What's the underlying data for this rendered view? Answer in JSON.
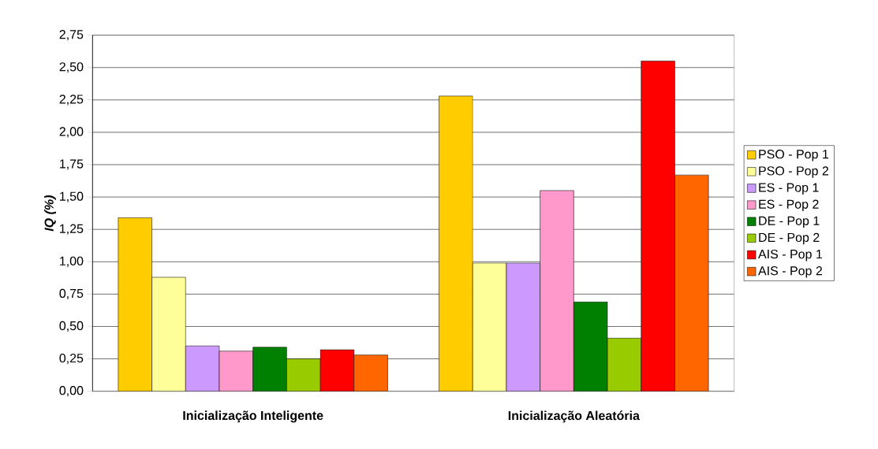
{
  "chart_data": {
    "type": "bar",
    "ylabel": "IQ (%)",
    "categories": [
      "Inicialização Inteligente",
      "Inicialização Aleatória"
    ],
    "series": [
      {
        "name": "PSO - Pop 1",
        "color": "#ffcc00",
        "values": [
          1.34,
          2.28
        ]
      },
      {
        "name": "PSO - Pop 2",
        "color": "#ffff99",
        "values": [
          0.88,
          0.99
        ]
      },
      {
        "name": "ES - Pop 1",
        "color": "#cc99ff",
        "values": [
          0.35,
          0.99
        ]
      },
      {
        "name": "ES - Pop 2",
        "color": "#ff99cc",
        "values": [
          0.31,
          1.55
        ]
      },
      {
        "name": "DE - Pop 1",
        "color": "#008000",
        "values": [
          0.34,
          0.69
        ]
      },
      {
        "name": "DE - Pop 2",
        "color": "#99cc00",
        "values": [
          0.25,
          0.41
        ]
      },
      {
        "name": "AIS - Pop 1",
        "color": "#ff0000",
        "values": [
          0.32,
          2.55
        ]
      },
      {
        "name": "AIS - Pop 2",
        "color": "#ff6600",
        "values": [
          0.28,
          1.67
        ]
      }
    ],
    "ylim": [
      0,
      2.75
    ],
    "yticks": [
      {
        "value": 0,
        "label": "0,00"
      },
      {
        "value": 0.25,
        "label": "0,25"
      },
      {
        "value": 0.5,
        "label": "0,50"
      },
      {
        "value": 0.75,
        "label": "0,75"
      },
      {
        "value": 1,
        "label": "1,00"
      },
      {
        "value": 1.25,
        "label": "1,25"
      },
      {
        "value": 1.5,
        "label": "1,50"
      },
      {
        "value": 1.75,
        "label": "1,75"
      },
      {
        "value": 2,
        "label": "2,00"
      },
      {
        "value": 2.25,
        "label": "2,25"
      },
      {
        "value": 2.5,
        "label": "2,50"
      },
      {
        "value": 2.75,
        "label": "2,75"
      }
    ],
    "grid": "y",
    "legend": "right"
  }
}
